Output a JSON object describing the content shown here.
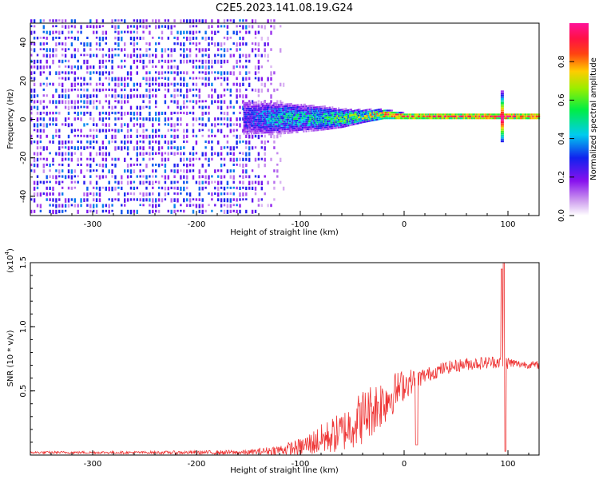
{
  "title": "C2E5.2023.141.08.19.G24",
  "colors": {
    "line": "#ee3333",
    "spectrum_scatter": "#7711ee",
    "axis": "#000000"
  },
  "chart_data": [
    {
      "type": "heatmap",
      "xlabel": "Height of straight line (km)",
      "ylabel": "Frequency (Hz)",
      "xlim": [
        -360,
        130
      ],
      "ylim": [
        -50,
        50
      ],
      "xticks": [
        "-300",
        "-200",
        "-100",
        "0",
        "100"
      ],
      "xtick_values": [
        -300,
        -200,
        -100,
        0,
        100
      ],
      "yticks": [
        "-40",
        "-20",
        "0",
        "20",
        "40"
      ],
      "ytick_values": [
        -40,
        -20,
        0,
        20,
        40
      ],
      "colorbar": {
        "label": "Normalized spectral amplitude",
        "range": [
          0,
          1
        ],
        "ticks": [
          "0.0",
          "0.2",
          "0.4",
          "0.6",
          "0.8"
        ],
        "tick_values": [
          0,
          0.2,
          0.4,
          0.6,
          0.8
        ],
        "colormap": "rainbow (white-violet-blue-cyan-green-yellow-red-magenta)"
      },
      "description_of_data": {
        "noise_region_km": [
          -360,
          -150
        ],
        "noise_level": 0.25,
        "carrier_center_hz": [
          [
            -150,
            0
          ],
          [
            -100,
            0
          ],
          [
            -60,
            0
          ],
          [
            -20,
            2
          ],
          [
            0,
            1
          ],
          [
            50,
            1
          ],
          [
            90,
            1
          ],
          [
            130,
            1
          ]
        ],
        "carrier_amplitude": [
          [
            -150,
            0.3
          ],
          [
            -120,
            0.45
          ],
          [
            -80,
            0.5
          ],
          [
            -40,
            0.65
          ],
          [
            -20,
            0.85
          ],
          [
            0,
            0.85
          ],
          [
            50,
            0.85
          ],
          [
            95,
            0.9
          ],
          [
            130,
            0.85
          ]
        ],
        "carrier_halfwidth_hz": [
          [
            -150,
            10
          ],
          [
            -120,
            9
          ],
          [
            -80,
            7
          ],
          [
            -40,
            4
          ],
          [
            -20,
            3
          ],
          [
            0,
            2
          ],
          [
            130,
            2
          ]
        ],
        "spike_at_km": 93
      }
    },
    {
      "type": "line",
      "xlabel": "Height of straight line (km)",
      "ylabel": "SNR (10 * v/v)",
      "scale_label": "(x10",
      "scale_exponent": "4",
      "scale_close": ")",
      "xlim": [
        -360,
        130
      ],
      "ylim": [
        0,
        1.5
      ],
      "xticks": [
        "-300",
        "-200",
        "-100",
        "0",
        "100"
      ],
      "xtick_values": [
        -300,
        -200,
        -100,
        0,
        100
      ],
      "yticks": [
        "0.5",
        "1.0",
        "1.5"
      ],
      "ytick_values": [
        0.5,
        1.0,
        1.5
      ],
      "series": [
        {
          "color": "#ee3333",
          "envelope_x": [
            -360,
            -250,
            -150,
            -120,
            -100,
            -80,
            -60,
            -40,
            -20,
            0,
            20,
            40,
            60,
            80,
            90,
            100,
            110,
            130
          ],
          "envelope_y": [
            0.02,
            0.02,
            0.02,
            0.04,
            0.06,
            0.12,
            0.18,
            0.3,
            0.42,
            0.55,
            0.62,
            0.68,
            0.71,
            0.72,
            0.73,
            0.72,
            0.71,
            0.7
          ],
          "noise_amplitude": [
            0.01,
            0.01,
            0.02,
            0.04,
            0.07,
            0.12,
            0.16,
            0.22,
            0.2,
            0.12,
            0.06,
            0.05,
            0.05,
            0.05,
            0.05,
            0.05,
            0.03,
            0.03
          ],
          "dropouts": [
            {
              "x": 12,
              "y": 0.08
            },
            {
              "x": 97,
              "y": 0.03
            }
          ],
          "peaks": [
            {
              "x": 94,
              "y": 1.45
            },
            {
              "x": 96,
              "y": 1.5
            }
          ]
        }
      ]
    }
  ]
}
